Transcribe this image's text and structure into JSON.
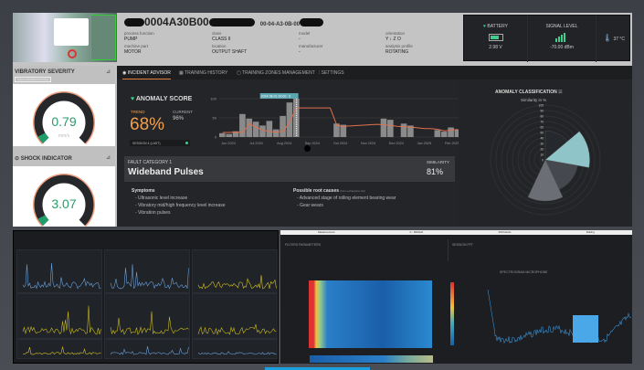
{
  "device": {
    "id": "0004A30B00",
    "mac": "00-04-A3-0B-00",
    "fields": [
      {
        "label": "process function",
        "value": "PUMP"
      },
      {
        "label": "class",
        "value": "CLASS II"
      },
      {
        "label": "model",
        "value": "-"
      },
      {
        "label": "orientation",
        "value": "Y ↓ Z O"
      },
      {
        "label": "machine part",
        "value": "MOTOR"
      },
      {
        "label": "location",
        "value": "OUTPUT SHAFT"
      },
      {
        "label": "manufacturer",
        "value": "-"
      },
      {
        "label": "analysis profile",
        "value": "ROTATING"
      }
    ]
  },
  "status": {
    "battery_label": "BATTERY",
    "battery_value": "2.98 V",
    "battery_level": 0.8,
    "signal_label": "SIGNAL LEVEL",
    "signal_value": "-70.00 dBm",
    "temperature": "37 °C",
    "accent": "#3ecf8e"
  },
  "left": {
    "vibratory": {
      "title": "VIBRATORY SEVERITY",
      "badge": "DISCLOSURE/OPTIONS",
      "value": "0.79",
      "unit": "mm/s",
      "fraction": 0.06
    },
    "shock": {
      "title": "SHOCK INDICATOR",
      "value": "3.07",
      "fraction": 0.06
    }
  },
  "tabs": [
    {
      "label": "INCIDENT ADVISOR",
      "active": true
    },
    {
      "label": "TRAINING HISTORY"
    },
    {
      "label": "TRAINING ZONES MANAGEMENT"
    },
    {
      "label": "SETTINGS"
    }
  ],
  "anomaly": {
    "title": "ANOMALY SCORE",
    "trend_label": "TREND",
    "trend_value": "68%",
    "current_label": "CURRENT",
    "current_value": "96%",
    "session": "SESSION 4 (LAST)",
    "tooltip": "2024-08-01 00:00 : 6",
    "trend_color": "#f0a050"
  },
  "chart_data": {
    "type": "line",
    "x_ticks": [
      "Jun 2024",
      "Jul 2024",
      "Aug 2024",
      "Sep 2024",
      "Oct 2024",
      "Nov 2024",
      "Dec 2024",
      "Jan 2025",
      "Feb 2025"
    ],
    "y_ticks": [
      "0",
      "50",
      "100"
    ],
    "ylim": [
      0,
      100
    ],
    "trend": [
      12,
      12,
      13,
      12,
      35,
      25,
      18,
      14,
      13,
      15,
      40,
      76,
      76,
      76,
      76,
      76,
      76,
      30,
      28,
      29,
      30,
      31,
      32,
      33,
      32,
      30,
      28,
      27,
      26,
      24,
      22,
      22,
      20,
      16,
      18,
      20
    ],
    "bars": [
      10,
      8,
      15,
      60,
      48,
      40,
      30,
      42,
      20,
      55,
      90,
      100,
      0,
      0,
      0,
      0,
      0,
      35,
      32,
      0,
      0,
      0,
      0,
      0,
      48,
      45,
      0,
      35,
      30,
      0,
      0,
      0,
      18,
      14,
      25,
      20
    ]
  },
  "fault": {
    "category": "FAULT CATEGORY 1",
    "name": "Wideband Pulses",
    "similarity_label": "SIMILARITY",
    "similarity": "81%",
    "symptoms_title": "Symptoms",
    "symptoms": [
      "- Ultrasonic level increase",
      "- Vibratory mid/high frequency level increase",
      "- Vibration pulses"
    ],
    "causes_title": "Possible root causes",
    "causes_note": "(Non-exhaustive list)",
    "causes": [
      "- Advanced stage of rolling element bearing wear",
      "- Gear wears"
    ]
  },
  "classification": {
    "title": "ANOMALY CLASSIFICATION",
    "subtitle": "Similarity in %",
    "ticks": [
      "100",
      "90",
      "80",
      "70",
      "60",
      "50",
      "40",
      "30",
      "20",
      "10",
      "0"
    ],
    "slices": [
      {
        "value": 53,
        "color": "#25282c"
      },
      {
        "value": 81,
        "color": "#8fc4c9"
      },
      {
        "value": 59,
        "color": "#45484f"
      },
      {
        "value": 75,
        "color": "#6b6f75"
      }
    ]
  },
  "spectro": {
    "header": [
      "Measurement",
      "0 - 8000Hz",
      "200 bands",
      "Rolling"
    ],
    "filters_title": "FILTERS PARAMETERS",
    "mode_title": "SESSION FFT",
    "spectrum_title": "SPECTROGRAM MICROPHONE"
  }
}
